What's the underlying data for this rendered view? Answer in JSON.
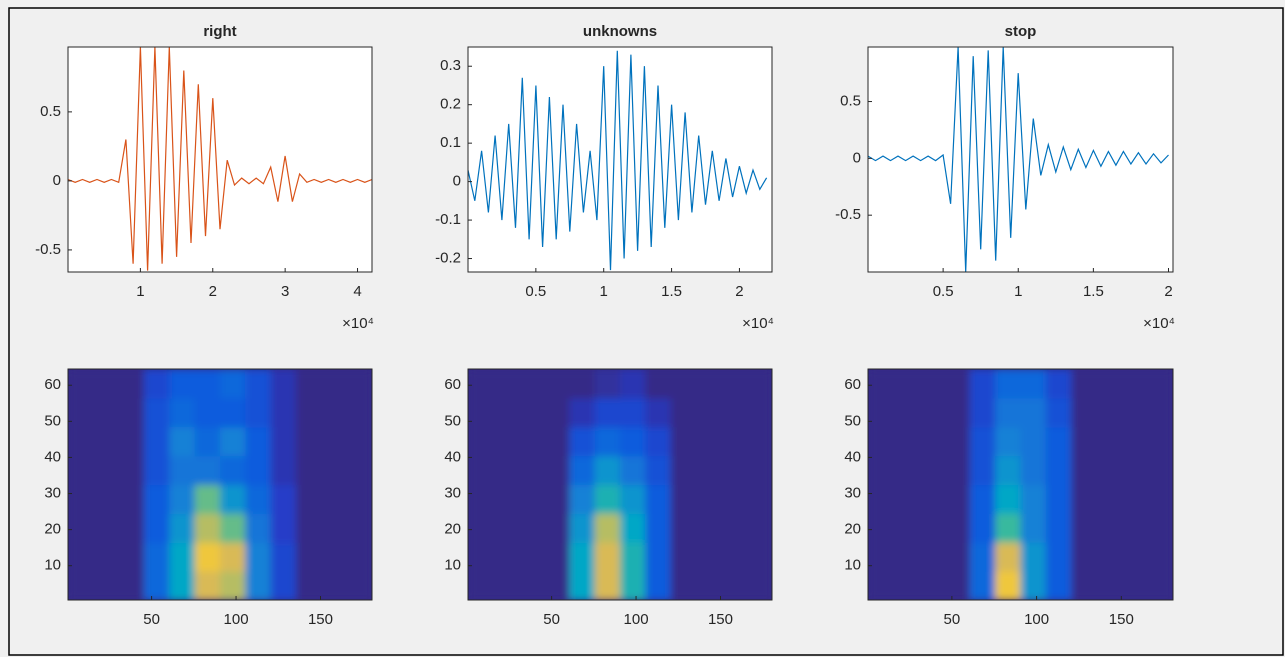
{
  "chart_data": [
    {
      "type": "line",
      "title": "right",
      "color": "#d95319",
      "x_exponent_label": "×10⁴",
      "x": [
        0,
        1000,
        2000,
        3000,
        4000,
        5000,
        6000,
        7000,
        8000,
        9000,
        10000,
        11000,
        12000,
        13000,
        14000,
        15000,
        16000,
        17000,
        18000,
        19000,
        20000,
        21000,
        22000,
        23000,
        24000,
        25000,
        26000,
        27000,
        28000,
        29000,
        30000,
        31000,
        32000,
        33000,
        34000,
        35000,
        36000,
        37000,
        38000,
        39000,
        40000,
        41000,
        42000
      ],
      "values": [
        0.01,
        -0.01,
        0.01,
        -0.01,
        0.01,
        -0.01,
        0.01,
        -0.01,
        0.3,
        -0.6,
        0.97,
        -0.65,
        0.97,
        -0.6,
        0.97,
        -0.55,
        0.8,
        -0.45,
        0.7,
        -0.4,
        0.6,
        -0.35,
        0.15,
        -0.03,
        0.02,
        -0.02,
        0.02,
        -0.02,
        0.1,
        -0.15,
        0.18,
        -0.15,
        0.05,
        -0.01,
        0.01,
        -0.01,
        0.01,
        -0.01,
        0.01,
        -0.01,
        0.01,
        -0.01,
        0.01
      ],
      "xlim": [
        0,
        42000
      ],
      "xticks": [
        {
          "value": 10000,
          "label": "1"
        },
        {
          "value": 20000,
          "label": "2"
        },
        {
          "value": 30000,
          "label": "3"
        },
        {
          "value": 40000,
          "label": "4"
        }
      ],
      "ylim": [
        -0.66,
        0.97
      ],
      "yticks": [
        -0.5,
        0,
        0.5
      ]
    },
    {
      "type": "line",
      "title": "unknowns",
      "color": "#0072bd",
      "x_exponent_label": "×10⁴",
      "x": [
        0,
        500,
        1000,
        1500,
        2000,
        2500,
        3000,
        3500,
        4000,
        4500,
        5000,
        5500,
        6000,
        6500,
        7000,
        7500,
        8000,
        8500,
        9000,
        9500,
        10000,
        10500,
        11000,
        11500,
        12000,
        12500,
        13000,
        13500,
        14000,
        14500,
        15000,
        15500,
        16000,
        16500,
        17000,
        17500,
        18000,
        18500,
        19000,
        19500,
        20000,
        20500,
        21000,
        21500,
        22000
      ],
      "values": [
        0.03,
        -0.05,
        0.08,
        -0.08,
        0.12,
        -0.1,
        0.15,
        -0.12,
        0.27,
        -0.15,
        0.25,
        -0.17,
        0.22,
        -0.15,
        0.2,
        -0.13,
        0.15,
        -0.08,
        0.08,
        -0.1,
        0.3,
        -0.23,
        0.34,
        -0.2,
        0.33,
        -0.18,
        0.3,
        -0.17,
        0.25,
        -0.12,
        0.2,
        -0.1,
        0.18,
        -0.08,
        0.12,
        -0.06,
        0.08,
        -0.05,
        0.06,
        -0.04,
        0.04,
        -0.03,
        0.03,
        -0.02,
        0.01
      ],
      "xlim": [
        0,
        22400
      ],
      "xticks": [
        {
          "value": 5000,
          "label": "0.5"
        },
        {
          "value": 10000,
          "label": "1"
        },
        {
          "value": 15000,
          "label": "1.5"
        },
        {
          "value": 20000,
          "label": "2"
        }
      ],
      "ylim": [
        -0.235,
        0.35
      ],
      "yticks": [
        -0.2,
        -0.1,
        0,
        0.1,
        0.2,
        0.3
      ]
    },
    {
      "type": "line",
      "title": "stop",
      "color": "#0072bd",
      "x_exponent_label": "×10⁴",
      "x": [
        0,
        500,
        1000,
        1500,
        2000,
        2500,
        3000,
        3500,
        4000,
        4500,
        5000,
        5500,
        6000,
        6500,
        7000,
        7500,
        8000,
        8500,
        9000,
        9500,
        10000,
        10500,
        11000,
        11500,
        12000,
        12500,
        13000,
        13500,
        14000,
        14500,
        15000,
        15500,
        16000,
        16500,
        17000,
        17500,
        18000,
        18500,
        19000,
        19500,
        20000
      ],
      "values": [
        0.02,
        -0.02,
        0.02,
        -0.02,
        0.02,
        -0.02,
        0.02,
        -0.02,
        0.02,
        -0.02,
        0.03,
        -0.4,
        0.98,
        -1.0,
        0.9,
        -0.8,
        0.95,
        -0.9,
        0.98,
        -0.7,
        0.75,
        -0.45,
        0.35,
        -0.15,
        0.12,
        -0.12,
        0.1,
        -0.1,
        0.08,
        -0.08,
        0.07,
        -0.07,
        0.06,
        -0.06,
        0.06,
        -0.05,
        0.05,
        -0.05,
        0.04,
        -0.04,
        0.03
      ],
      "xlim": [
        0,
        20300
      ],
      "xticks": [
        {
          "value": 5000,
          "label": "0.5"
        },
        {
          "value": 10000,
          "label": "1"
        },
        {
          "value": 15000,
          "label": "1.5"
        },
        {
          "value": 20000,
          "label": "2"
        }
      ],
      "ylim": [
        -1,
        0.98
      ],
      "yticks": [
        -0.5,
        0,
        0.5
      ]
    },
    {
      "type": "heatmap",
      "x": [
        8,
        23,
        38,
        53,
        68,
        83,
        98,
        113,
        128,
        143,
        158,
        173
      ],
      "y": [
        4.5,
        12.5,
        20.5,
        28.5,
        36.5,
        44.5,
        52.5,
        60.5
      ],
      "z": [
        [
          0,
          0,
          0,
          0.35,
          0.55,
          0.85,
          0.8,
          0.45,
          0.2,
          0,
          0,
          0
        ],
        [
          0,
          0,
          0,
          0.35,
          0.55,
          0.9,
          0.85,
          0.45,
          0.2,
          0,
          0,
          0
        ],
        [
          0,
          0,
          0,
          0.3,
          0.5,
          0.8,
          0.7,
          0.4,
          0.15,
          0,
          0,
          0
        ],
        [
          0,
          0,
          0,
          0.3,
          0.45,
          0.7,
          0.5,
          0.35,
          0.15,
          0,
          0,
          0
        ],
        [
          0,
          0,
          0,
          0.25,
          0.4,
          0.4,
          0.35,
          0.3,
          0.1,
          0,
          0,
          0
        ],
        [
          0,
          0,
          0,
          0.25,
          0.45,
          0.35,
          0.45,
          0.3,
          0.1,
          0,
          0,
          0
        ],
        [
          0,
          0,
          0,
          0.25,
          0.35,
          0.3,
          0.3,
          0.25,
          0.1,
          0,
          0,
          0
        ],
        [
          0,
          0,
          0,
          0.2,
          0.3,
          0.3,
          0.35,
          0.25,
          0.1,
          0,
          0,
          0
        ]
      ],
      "xlim": [
        0.5,
        180.5
      ],
      "xticks": [
        50,
        100,
        150
      ],
      "ylim": [
        0.5,
        64.5
      ],
      "yticks": [
        10,
        20,
        30,
        40,
        50,
        60
      ]
    },
    {
      "type": "heatmap",
      "x": [
        8,
        23,
        38,
        53,
        68,
        83,
        98,
        113,
        128,
        143,
        158,
        173
      ],
      "y": [
        4.5,
        12.5,
        20.5,
        28.5,
        36.5,
        44.5,
        52.5,
        60.5
      ],
      "z": [
        [
          0,
          0,
          0,
          0,
          0.55,
          0.85,
          0.6,
          0.3,
          0,
          0,
          0,
          0
        ],
        [
          0,
          0,
          0,
          0,
          0.55,
          0.85,
          0.6,
          0.3,
          0,
          0,
          0,
          0
        ],
        [
          0,
          0,
          0,
          0,
          0.5,
          0.8,
          0.55,
          0.3,
          0,
          0,
          0,
          0
        ],
        [
          0,
          0,
          0,
          0,
          0.45,
          0.6,
          0.5,
          0.3,
          0,
          0,
          0,
          0
        ],
        [
          0,
          0,
          0,
          0,
          0.35,
          0.5,
          0.4,
          0.25,
          0,
          0,
          0,
          0
        ],
        [
          0,
          0,
          0,
          0,
          0.25,
          0.35,
          0.3,
          0.2,
          0,
          0,
          0,
          0
        ],
        [
          0,
          0,
          0,
          0,
          0.1,
          0.2,
          0.2,
          0.1,
          0,
          0,
          0,
          0
        ],
        [
          0,
          0,
          0,
          0,
          0,
          0.05,
          0.1,
          0,
          0,
          0,
          0,
          0
        ]
      ],
      "xlim": [
        0.5,
        180.5
      ],
      "xticks": [
        50,
        100,
        150
      ],
      "ylim": [
        0.5,
        64.5
      ],
      "yticks": [
        10,
        20,
        30,
        40,
        50,
        60
      ]
    },
    {
      "type": "heatmap",
      "x": [
        8,
        23,
        38,
        53,
        68,
        83,
        98,
        113,
        128,
        143,
        158,
        173
      ],
      "y": [
        4.5,
        12.5,
        20.5,
        28.5,
        36.5,
        44.5,
        52.5,
        60.5
      ],
      "z": [
        [
          0,
          0,
          0,
          0,
          0.35,
          0.9,
          0.5,
          0.3,
          0,
          0,
          0,
          0
        ],
        [
          0,
          0,
          0,
          0,
          0.35,
          0.85,
          0.5,
          0.3,
          0,
          0,
          0,
          0
        ],
        [
          0,
          0,
          0,
          0,
          0.3,
          0.65,
          0.45,
          0.3,
          0,
          0,
          0,
          0
        ],
        [
          0,
          0,
          0,
          0,
          0.3,
          0.55,
          0.45,
          0.3,
          0,
          0,
          0,
          0
        ],
        [
          0,
          0,
          0,
          0,
          0.25,
          0.5,
          0.4,
          0.3,
          0,
          0,
          0,
          0
        ],
        [
          0,
          0,
          0,
          0,
          0.25,
          0.45,
          0.4,
          0.3,
          0,
          0,
          0,
          0
        ],
        [
          0,
          0,
          0,
          0,
          0.2,
          0.4,
          0.4,
          0.25,
          0,
          0,
          0,
          0
        ],
        [
          0,
          0,
          0,
          0,
          0.2,
          0.35,
          0.35,
          0.2,
          0,
          0,
          0,
          0
        ]
      ],
      "xlim": [
        0.5,
        180.5
      ],
      "xticks": [
        50,
        100,
        150
      ],
      "ylim": [
        0.5,
        64.5
      ],
      "yticks": [
        10,
        20,
        30,
        40,
        50,
        60
      ]
    }
  ]
}
